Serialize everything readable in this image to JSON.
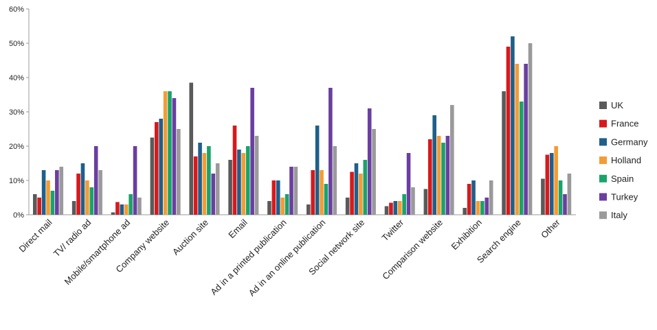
{
  "chart_data": {
    "type": "bar",
    "title": "",
    "xlabel": "",
    "ylabel": "",
    "ylim": [
      0,
      60
    ],
    "yticks": [
      "0%",
      "10%",
      "20%",
      "30%",
      "40%",
      "50%",
      "60%"
    ],
    "grid": false,
    "legend_position": "right",
    "categories": [
      "Direct mail",
      "TV/ radio ad",
      "Mobile/smartphone ad",
      "Company website",
      "Auction site",
      "Email",
      "Ad in a printed publication",
      "Ad in an online publication",
      "Social network site",
      "Twitter",
      "Comparison website",
      "Exhibition",
      "Search engine",
      "Other"
    ],
    "series": [
      {
        "name": "UK",
        "color": "#5a5a5a",
        "values": [
          6,
          4,
          0.7,
          22.5,
          38.5,
          16,
          4,
          3,
          5,
          2.5,
          7.5,
          2,
          36,
          10.5
        ]
      },
      {
        "name": "France",
        "color": "#d7191c",
        "values": [
          5,
          12,
          3.7,
          27,
          17,
          26,
          10,
          13,
          12.5,
          3.5,
          22,
          9,
          49,
          17.5
        ]
      },
      {
        "name": "Germany",
        "color": "#1f5f8b",
        "values": [
          13,
          15,
          3,
          28,
          21,
          19,
          10,
          26,
          15,
          4,
          29,
          10,
          52,
          18
        ]
      },
      {
        "name": "Holland",
        "color": "#f39c35",
        "values": [
          10,
          10,
          3,
          36,
          18,
          18,
          5,
          13,
          12,
          4,
          23,
          4,
          44,
          20
        ]
      },
      {
        "name": "Spain",
        "color": "#1aa36b",
        "values": [
          7,
          8,
          6,
          36,
          20,
          20,
          6,
          9,
          16,
          6,
          21,
          4,
          33,
          10
        ]
      },
      {
        "name": "Turkey",
        "color": "#6a3fa0",
        "values": [
          13,
          20,
          20,
          34,
          12,
          37,
          14,
          37,
          31,
          18,
          23,
          5,
          44,
          6
        ]
      },
      {
        "name": "Italy",
        "color": "#9a9a9a",
        "values": [
          14,
          13,
          5,
          25,
          15,
          23,
          14,
          20,
          25,
          8,
          32,
          10,
          50,
          12
        ]
      }
    ]
  }
}
